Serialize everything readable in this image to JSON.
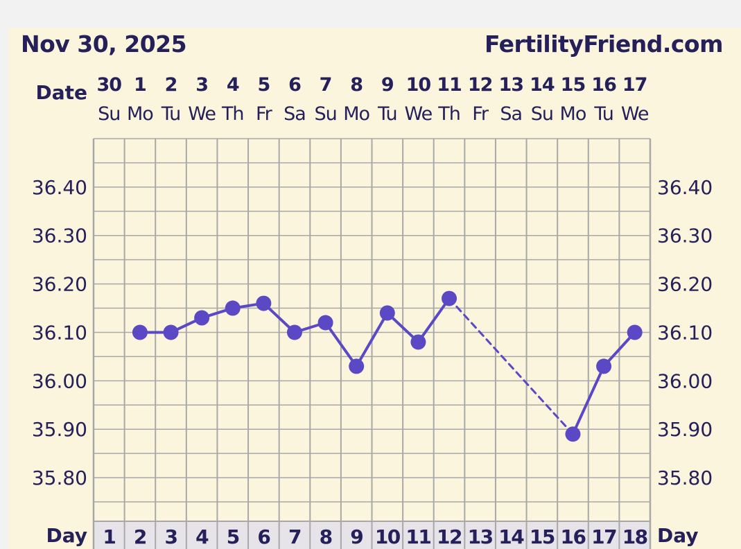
{
  "header": {
    "date_title": "Nov 30, 2025",
    "site_name": "FertilityFriend.com"
  },
  "colors": {
    "background": "#faf5dc",
    "grid": "#a8a8a8",
    "text": "#26205a",
    "line": "#5a48c4",
    "day_row": "#e6e4e8"
  },
  "chart_data": {
    "type": "line",
    "title": "",
    "date_row_label": "Date",
    "day_row_label": "Day",
    "dates": [
      "30",
      "1",
      "2",
      "3",
      "4",
      "5",
      "6",
      "7",
      "8",
      "9",
      "10",
      "11",
      "12",
      "13",
      "14",
      "15",
      "16",
      "17"
    ],
    "weekdays": [
      "Su",
      "Mo",
      "Tu",
      "We",
      "Th",
      "Fr",
      "Sa",
      "Su",
      "Mo",
      "Tu",
      "We",
      "Th",
      "Fr",
      "Sa",
      "Su",
      "Mo",
      "Tu",
      "We"
    ],
    "cycle_days": [
      "1",
      "2",
      "3",
      "4",
      "5",
      "6",
      "7",
      "8",
      "9",
      "10",
      "11",
      "12",
      "13",
      "14",
      "15",
      "16",
      "17",
      "18"
    ],
    "y_ticks": [
      "36.40",
      "36.30",
      "36.20",
      "36.10",
      "36.00",
      "35.90",
      "35.80"
    ],
    "ylim": [
      35.71,
      36.5
    ],
    "y_minor_step": 0.05,
    "grid": true,
    "series": [
      {
        "points": [
          {
            "day": 2,
            "temp": 36.1
          },
          {
            "day": 3,
            "temp": 36.1
          },
          {
            "day": 4,
            "temp": 36.13
          },
          {
            "day": 5,
            "temp": 36.15
          },
          {
            "day": 6,
            "temp": 36.16
          },
          {
            "day": 7,
            "temp": 36.1
          },
          {
            "day": 8,
            "temp": 36.12
          },
          {
            "day": 9,
            "temp": 36.03
          },
          {
            "day": 10,
            "temp": 36.14
          },
          {
            "day": 11,
            "temp": 36.08
          },
          {
            "day": 12,
            "temp": 36.17
          },
          {
            "day": 16,
            "temp": 35.89
          },
          {
            "day": 17,
            "temp": 36.03
          },
          {
            "day": 18,
            "temp": 36.1
          }
        ],
        "dashed_gaps": [
          [
            12,
            16
          ]
        ]
      }
    ]
  }
}
